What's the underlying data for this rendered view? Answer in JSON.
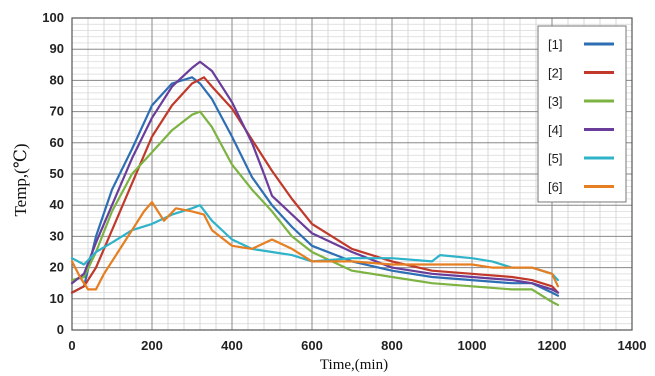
{
  "chart_data": {
    "type": "line",
    "xlabel": "Time,(min)",
    "ylabel": "Temp,(℃)",
    "xlim": [
      0,
      1400
    ],
    "ylim": [
      0,
      100
    ],
    "x_ticks": [
      "0",
      "200",
      "400",
      "600",
      "800",
      "1000",
      "1200",
      "1400"
    ],
    "y_ticks": [
      "0",
      "10",
      "20",
      "30",
      "40",
      "50",
      "60",
      "70",
      "80",
      "90",
      "100"
    ],
    "grid": true,
    "legend_position": "top-right",
    "series": [
      {
        "name": "[1]",
        "color": "#2e6fb4",
        "x": [
          0,
          30,
          60,
          100,
          150,
          200,
          250,
          300,
          320,
          350,
          400,
          450,
          500,
          550,
          600,
          700,
          800,
          900,
          1000,
          1100,
          1150,
          1200,
          1215
        ],
        "y": [
          12,
          14,
          30,
          45,
          58,
          72,
          79,
          81,
          79,
          74,
          62,
          49,
          40,
          33,
          27,
          22,
          19,
          17,
          16,
          15,
          15,
          12,
          11
        ]
      },
      {
        "name": "[2]",
        "color": "#c0392b",
        "x": [
          0,
          30,
          60,
          100,
          150,
          200,
          250,
          300,
          330,
          350,
          400,
          450,
          500,
          550,
          600,
          700,
          800,
          900,
          1000,
          1100,
          1150,
          1200,
          1215
        ],
        "y": [
          12,
          14,
          20,
          32,
          47,
          62,
          72,
          79,
          81,
          78,
          71,
          61,
          51,
          42,
          34,
          26,
          22,
          19,
          18,
          17,
          16,
          14,
          12
        ]
      },
      {
        "name": "[3]",
        "color": "#7cb342",
        "x": [
          0,
          30,
          60,
          100,
          150,
          200,
          250,
          300,
          320,
          350,
          400,
          450,
          500,
          550,
          600,
          700,
          800,
          900,
          1000,
          1100,
          1150,
          1200,
          1215
        ],
        "y": [
          16,
          17,
          25,
          38,
          50,
          57,
          64,
          69,
          70,
          65,
          53,
          45,
          38,
          30,
          25,
          19,
          17,
          15,
          14,
          13,
          13,
          9,
          8
        ]
      },
      {
        "name": "[4]",
        "color": "#6a3d9a",
        "x": [
          0,
          30,
          60,
          100,
          150,
          200,
          250,
          300,
          320,
          350,
          400,
          450,
          480,
          500,
          550,
          600,
          700,
          800,
          900,
          1000,
          1100,
          1150,
          1200,
          1215
        ],
        "y": [
          15,
          18,
          28,
          40,
          55,
          68,
          78,
          84,
          86,
          83,
          73,
          60,
          50,
          43,
          37,
          31,
          25,
          20,
          18,
          17,
          16,
          15,
          13,
          12
        ]
      },
      {
        "name": "[5]",
        "color": "#2fb3c9",
        "x": [
          0,
          30,
          60,
          100,
          150,
          200,
          250,
          300,
          320,
          350,
          400,
          450,
          500,
          550,
          600,
          700,
          800,
          900,
          920,
          1000,
          1050,
          1100,
          1150,
          1200,
          1215
        ],
        "y": [
          23,
          21,
          25,
          28,
          32,
          34,
          37,
          39,
          40,
          35,
          29,
          26,
          25,
          24,
          22,
          23,
          23,
          22,
          24,
          23,
          22,
          20,
          20,
          18,
          16
        ]
      },
      {
        "name": "[6]",
        "color": "#e67e22",
        "x": [
          0,
          20,
          40,
          60,
          80,
          120,
          150,
          180,
          200,
          230,
          260,
          300,
          330,
          350,
          400,
          450,
          500,
          550,
          600,
          700,
          800,
          900,
          1000,
          1050,
          1100,
          1150,
          1200,
          1215
        ],
        "y": [
          22,
          17,
          13,
          13,
          18,
          26,
          32,
          38,
          41,
          35,
          39,
          38,
          37,
          32,
          27,
          26,
          29,
          26,
          22,
          22,
          21,
          21,
          21,
          20,
          20,
          20,
          18,
          14
        ]
      }
    ]
  }
}
